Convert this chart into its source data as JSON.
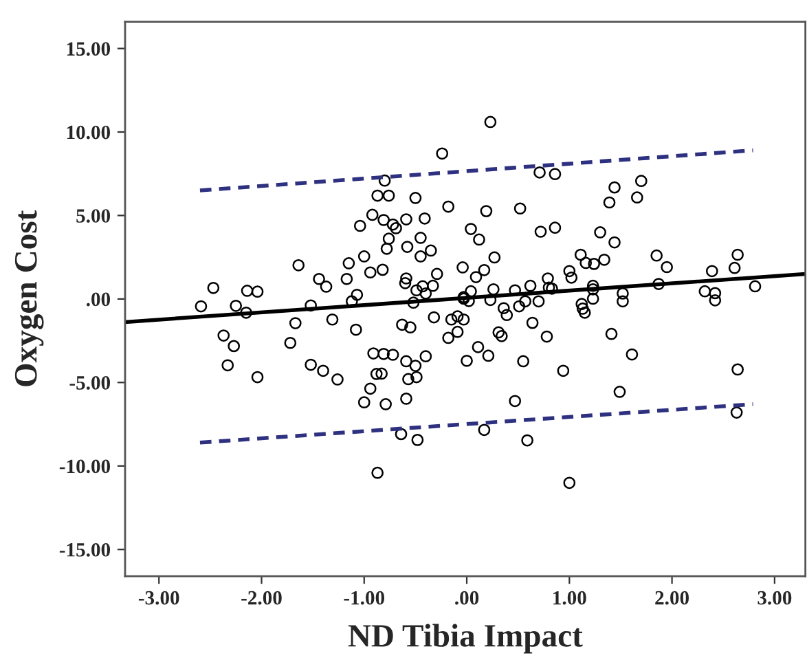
{
  "chart_data": {
    "type": "scatter",
    "xlabel": "ND Tibia Impact",
    "ylabel": "Oxygen Cost",
    "xlim": [
      -3.33,
      3.3
    ],
    "ylim": [
      -16.6,
      16.6
    ],
    "xticks": [
      {
        "value": -3,
        "label": "-3.00"
      },
      {
        "value": -2,
        "label": "-2.00"
      },
      {
        "value": -1,
        "label": "-1.00"
      },
      {
        "value": 0,
        "label": ".00"
      },
      {
        "value": 1,
        "label": "1.00"
      },
      {
        "value": 2,
        "label": "2.00"
      },
      {
        "value": 3,
        "label": "3.00"
      }
    ],
    "yticks": [
      {
        "value": -15,
        "label": "-15.00"
      },
      {
        "value": -10,
        "label": "-10.00"
      },
      {
        "value": -5,
        "label": "-5.00"
      },
      {
        "value": 0,
        "label": ".00"
      },
      {
        "value": 5,
        "label": "5.00"
      },
      {
        "value": 10,
        "label": "10.00"
      },
      {
        "value": 15,
        "label": "15.00"
      }
    ],
    "grid": false,
    "series": [
      {
        "color": "#000000",
        "marker": "circle",
        "x": [
          -0.24,
          -0.8,
          -0.87,
          -0.76,
          -0.5,
          -0.18,
          -0.92,
          -0.81,
          -1.04,
          -0.72,
          -0.69,
          -0.59,
          -0.41,
          -0.76,
          -0.45,
          -0.78,
          -0.58,
          -0.35,
          -0.45,
          -1.0,
          -1.15,
          -1.64,
          -0.94,
          -0.82,
          -0.29,
          -1.44,
          -1.17,
          -0.59,
          -0.6,
          -1.37,
          -0.43,
          -0.49,
          -0.33,
          -0.4,
          -2.47,
          -2.14,
          -2.04,
          -1.07,
          -1.12,
          -0.52,
          -2.59,
          -2.25,
          -1.52,
          -2.15,
          -0.03,
          -0.32,
          -0.04,
          -1.31,
          -1.67,
          -0.63,
          -0.55,
          -0.15,
          -0.09,
          -1.08,
          -0.18,
          -0.09,
          -2.37,
          -2.27,
          -2.33,
          -2.04,
          -1.72,
          -1.52,
          -1.4,
          -1.26,
          -0.91,
          -0.81,
          -0.72,
          -0.88,
          -0.83,
          -0.94,
          -1.0,
          -0.79,
          -0.59,
          -0.5,
          -0.4,
          -0.57,
          -0.49,
          -0.59,
          -0.64,
          -0.48,
          -0.87,
          0.0,
          0.23,
          0.71,
          0.86,
          1.7,
          1.44,
          1.66,
          1.39,
          0.19,
          0.52,
          0.04,
          0.12,
          0.72,
          0.86,
          1.3,
          1.44,
          0.27,
          0.09,
          0.17,
          1.11,
          1.16,
          1.24,
          1.34,
          1.0,
          1.02,
          0.79,
          1.85,
          1.95,
          2.39,
          2.61,
          2.64,
          2.81,
          2.32,
          2.42,
          2.42,
          1.87,
          1.23,
          1.23,
          1.52,
          1.52,
          1.23,
          1.12,
          1.13,
          1.15,
          0.8,
          0.83,
          0.62,
          0.47,
          0.7,
          0.57,
          0.51,
          0.36,
          0.39,
          0.26,
          0.23,
          0.04,
          0.02,
          -0.03,
          -0.03,
          0.64,
          0.31,
          0.34,
          0.78,
          1.41,
          0.11,
          0.21,
          0.55,
          1.61,
          0.94,
          2.64,
          1.49,
          0.47,
          0.17,
          0.59,
          2.63,
          1.0
        ],
        "values": [
          8.71,
          7.09,
          6.19,
          6.19,
          6.05,
          5.53,
          5.04,
          4.73,
          4.38,
          4.46,
          4.24,
          4.77,
          4.82,
          3.61,
          3.66,
          3.01,
          3.12,
          2.9,
          2.55,
          2.55,
          2.14,
          2.02,
          1.59,
          1.75,
          1.5,
          1.2,
          1.2,
          1.23,
          0.95,
          0.74,
          0.76,
          0.52,
          0.79,
          0.33,
          0.66,
          0.49,
          0.44,
          0.25,
          -0.14,
          -0.22,
          -0.44,
          -0.41,
          -0.39,
          -0.82,
          0.11,
          -1.1,
          1.89,
          -1.23,
          -1.45,
          -1.54,
          -1.7,
          -1.23,
          -1.04,
          -1.84,
          -2.33,
          -1.97,
          -2.19,
          -2.82,
          -3.97,
          -4.68,
          -2.63,
          -3.94,
          -4.3,
          -4.82,
          -3.26,
          -3.29,
          -3.34,
          -4.49,
          -4.47,
          -5.37,
          -6.19,
          -6.3,
          -3.73,
          -4.0,
          -3.43,
          -4.8,
          -4.68,
          -5.97,
          -8.09,
          -8.44,
          -10.41,
          -3.7,
          10.6,
          7.58,
          7.48,
          7.07,
          6.68,
          6.08,
          5.78,
          5.26,
          5.42,
          4.19,
          3.56,
          4.03,
          4.27,
          3.99,
          3.39,
          2.49,
          1.31,
          1.73,
          2.65,
          2.16,
          2.1,
          2.35,
          1.67,
          1.28,
          1.23,
          2.6,
          1.91,
          1.67,
          1.86,
          2.65,
          0.76,
          0.46,
          0.35,
          -0.08,
          0.9,
          0.79,
          0.58,
          0.33,
          -0.14,
          0.02,
          -0.3,
          -0.58,
          -0.82,
          0.68,
          0.62,
          0.79,
          0.52,
          -0.14,
          -0.14,
          -0.44,
          -0.55,
          -0.96,
          0.58,
          -0.06,
          0.46,
          -0.12,
          0.02,
          -1.23,
          -1.43,
          -2.0,
          -2.22,
          -2.25,
          -2.09,
          -2.88,
          -3.4,
          -3.73,
          -3.32,
          -4.3,
          -4.22,
          -5.56,
          -6.11,
          -7.84,
          -8.47,
          -6.8,
          -11.01
        ]
      },
      {
        "type": "line",
        "color": "#000000",
        "line_style": "solid",
        "x": [
          -3.33,
          3.3
        ],
        "values": [
          -1.38,
          1.5
        ]
      },
      {
        "type": "line",
        "color": "#2e3180",
        "line_style": "dashed",
        "x": [
          -2.6,
          2.79
        ],
        "values": [
          6.5,
          8.9
        ]
      },
      {
        "type": "line",
        "color": "#2e3180",
        "line_style": "dashed",
        "x": [
          -2.6,
          2.79
        ],
        "values": [
          -8.6,
          -6.3
        ]
      }
    ]
  }
}
